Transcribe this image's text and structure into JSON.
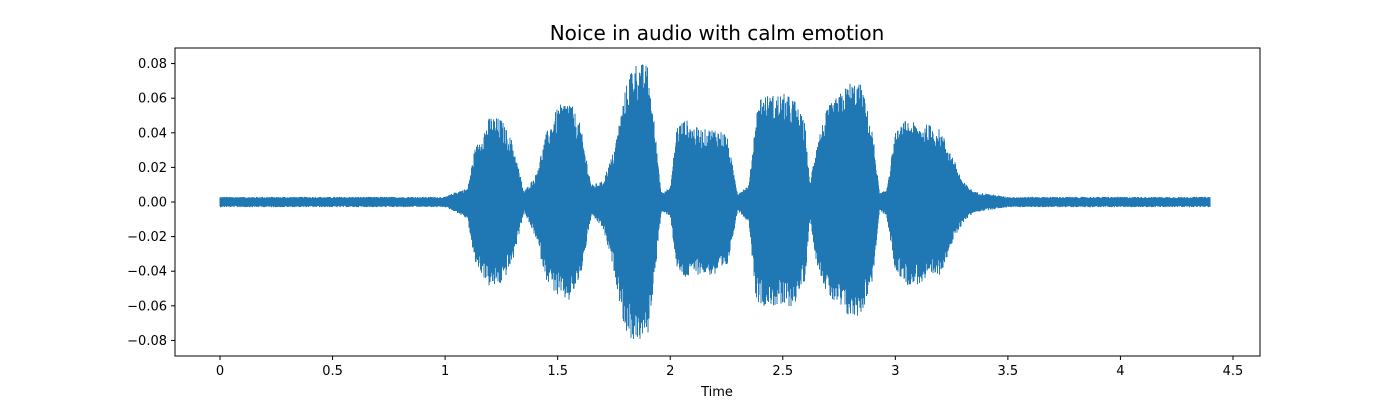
{
  "chart_data": {
    "type": "area",
    "title": "Noice in audio with calm emotion",
    "xlabel": "Time",
    "ylabel": "",
    "xlim": [
      -0.2,
      4.62
    ],
    "ylim": [
      -0.089,
      0.089
    ],
    "x_ticks": [
      0,
      0.5,
      1,
      1.5,
      2,
      2.5,
      3,
      3.5,
      4,
      4.5
    ],
    "x_tick_labels": [
      "0",
      "0.5",
      "1",
      "1.5",
      "2",
      "2.5",
      "3",
      "3.5",
      "4",
      "4.5"
    ],
    "y_ticks": [
      -0.08,
      -0.06,
      -0.04,
      -0.02,
      0.0,
      0.02,
      0.04,
      0.06,
      0.08
    ],
    "y_tick_labels": [
      "−0.08",
      "−0.06",
      "−0.04",
      "−0.02",
      "0.00",
      "0.02",
      "0.04",
      "0.06",
      "0.08"
    ],
    "grid": false,
    "legend": "none",
    "color": "#1f77b4",
    "duration": 4.4,
    "series": [
      {
        "envelope_time": [
          0.0,
          1.0,
          1.05,
          1.1,
          1.13,
          1.2,
          1.25,
          1.3,
          1.35,
          1.4,
          1.45,
          1.5,
          1.55,
          1.6,
          1.65,
          1.7,
          1.75,
          1.8,
          1.83,
          1.86,
          1.9,
          1.93,
          1.96,
          2.0,
          2.03,
          2.07,
          2.1,
          2.15,
          2.2,
          2.25,
          2.3,
          2.35,
          2.38,
          2.4,
          2.45,
          2.5,
          2.55,
          2.6,
          2.62,
          2.65,
          2.7,
          2.75,
          2.8,
          2.85,
          2.9,
          2.93,
          2.96,
          3.0,
          3.05,
          3.1,
          3.15,
          3.2,
          3.25,
          3.3,
          3.35,
          3.45,
          3.5,
          4.4
        ],
        "envelope_upper": [
          0.003,
          0.003,
          0.006,
          0.008,
          0.03,
          0.05,
          0.048,
          0.035,
          0.006,
          0.015,
          0.04,
          0.055,
          0.06,
          0.045,
          0.01,
          0.012,
          0.03,
          0.065,
          0.08,
          0.081,
          0.079,
          0.045,
          0.006,
          0.008,
          0.045,
          0.048,
          0.044,
          0.042,
          0.043,
          0.04,
          0.005,
          0.01,
          0.05,
          0.062,
          0.062,
          0.063,
          0.06,
          0.045,
          0.01,
          0.035,
          0.055,
          0.062,
          0.07,
          0.068,
          0.04,
          0.005,
          0.007,
          0.04,
          0.048,
          0.045,
          0.045,
          0.042,
          0.028,
          0.012,
          0.006,
          0.004,
          0.003,
          0.003
        ],
        "envelope_lower": [
          -0.003,
          -0.003,
          -0.006,
          -0.01,
          -0.035,
          -0.05,
          -0.048,
          -0.035,
          -0.006,
          -0.02,
          -0.045,
          -0.055,
          -0.058,
          -0.045,
          -0.008,
          -0.015,
          -0.04,
          -0.075,
          -0.08,
          -0.081,
          -0.078,
          -0.045,
          -0.006,
          -0.008,
          -0.04,
          -0.045,
          -0.042,
          -0.042,
          -0.043,
          -0.04,
          -0.005,
          -0.012,
          -0.055,
          -0.06,
          -0.06,
          -0.062,
          -0.06,
          -0.045,
          -0.01,
          -0.035,
          -0.055,
          -0.062,
          -0.068,
          -0.065,
          -0.045,
          -0.005,
          -0.008,
          -0.04,
          -0.048,
          -0.048,
          -0.046,
          -0.042,
          -0.025,
          -0.012,
          -0.006,
          -0.004,
          -0.003,
          -0.003
        ]
      }
    ]
  }
}
